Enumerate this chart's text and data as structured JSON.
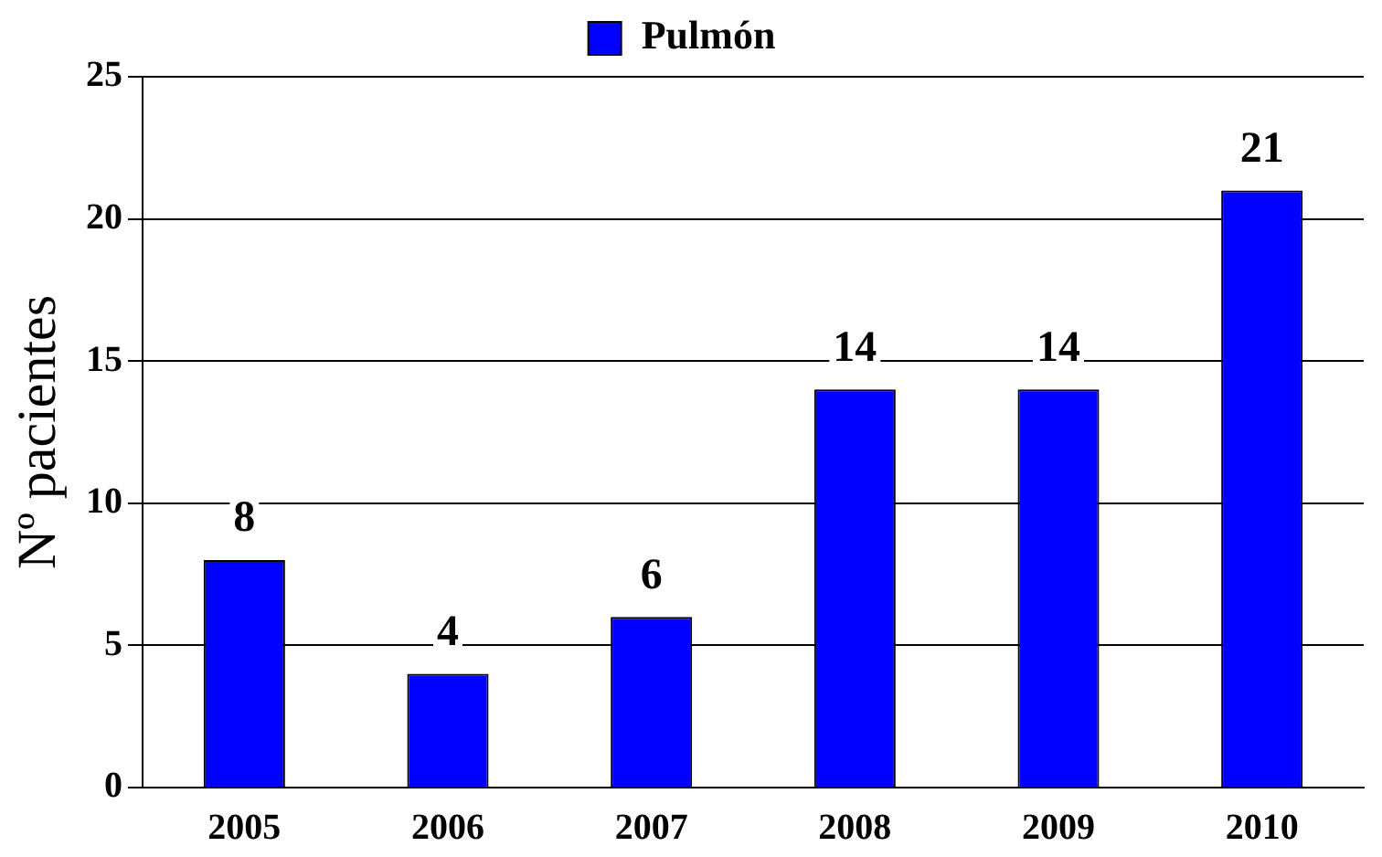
{
  "chart_data": {
    "type": "bar",
    "ylabel": "Nº pacientes",
    "categories": [
      "2005",
      "2006",
      "2007",
      "2008",
      "2009",
      "2010"
    ],
    "series": [
      {
        "name": "Pulmón",
        "color": "#0000ff",
        "values": [
          8,
          4,
          6,
          14,
          14,
          21
        ]
      }
    ],
    "ylim": [
      0,
      25
    ],
    "yticks": [
      0,
      5,
      10,
      15,
      20,
      25
    ],
    "grid": "y",
    "legend": "top",
    "data_labels": true
  }
}
